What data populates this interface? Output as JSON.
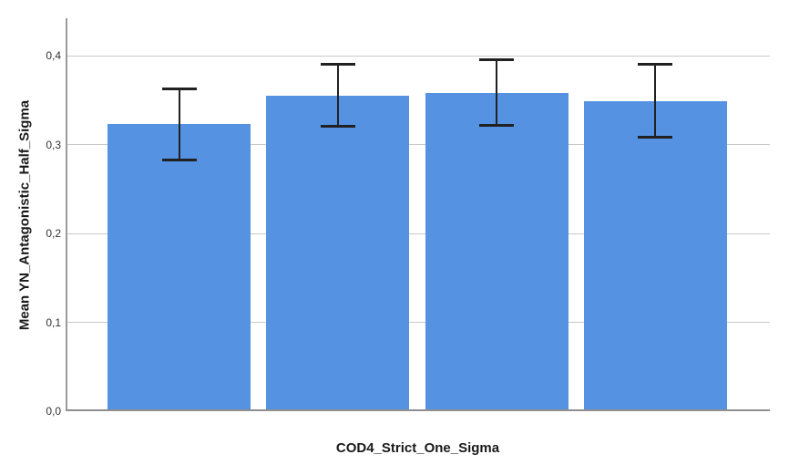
{
  "chart_data": {
    "type": "bar",
    "title": "",
    "xlabel": "COD4_Strict_One_Sigma",
    "ylabel": "Mean YN_Antagonistic_Half_Sigma",
    "categories": [
      "",
      "",
      "",
      ""
    ],
    "values": [
      0.323,
      0.355,
      0.358,
      0.349
    ],
    "error_high": [
      0.363,
      0.39,
      0.395,
      0.39
    ],
    "error_low": [
      0.283,
      0.321,
      0.322,
      0.308
    ],
    "ylim": [
      0,
      0.442
    ],
    "yticks": [
      0,
      0.1,
      0.2,
      0.3,
      0.4
    ],
    "ytick_labels": [
      "0,0",
      "0,1",
      "0,2",
      "0,3",
      "0,4"
    ],
    "legend": "none",
    "grid": "horizontal-gridlines",
    "error_bars": "shown",
    "colors": {
      "bar_fill": "#5593E2",
      "error_bar": "#212121",
      "gridline": "#C9C9C9",
      "axis_line": "#9A9A9A",
      "tick_label": "#333333",
      "axis_title": "#1A1A1A",
      "background": "#FFFFFF"
    }
  }
}
